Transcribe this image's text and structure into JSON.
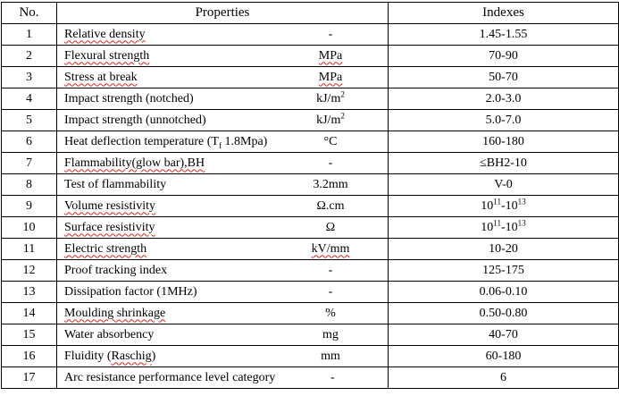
{
  "document": {
    "table": {
      "headers": {
        "no": "No.",
        "properties": "Properties",
        "indexes": "Indexes"
      },
      "rows": [
        {
          "no": "1",
          "name": [
            {
              "t": "Relative density",
              "wavy": true
            }
          ],
          "unit": "-",
          "index": "1.45-1.55"
        },
        {
          "no": "2",
          "name": [
            {
              "t": "Flexural strength",
              "wavy": true
            }
          ],
          "unit": [
            {
              "t": "MPa",
              "wavy": true
            }
          ],
          "index": "70-90"
        },
        {
          "no": "3",
          "name": [
            {
              "t": "Stress at break",
              "wavy": true
            }
          ],
          "unit": [
            {
              "t": "MPa",
              "wavy": true
            }
          ],
          "index": "50-70"
        },
        {
          "no": "4",
          "name": "Impact strength (notched)",
          "unit": [
            {
              "t": "kJ/m"
            },
            {
              "t": "2",
              "sup": true
            }
          ],
          "index": "2.0-3.0"
        },
        {
          "no": "5",
          "name": "Impact strength (unnotched)",
          "unit": [
            {
              "t": "kJ/m"
            },
            {
              "t": "2",
              "sup": true
            }
          ],
          "index": "5.0-7.0"
        },
        {
          "no": "6",
          "name": [
            {
              "t": "Heat deflection temperature (T"
            },
            {
              "t": "f",
              "sub": true
            },
            {
              "t": " 1.8Mpa)"
            }
          ],
          "unit": "°C",
          "index": "160-180"
        },
        {
          "no": "7",
          "name": [
            {
              "t": "Flammability(glow bar),BH",
              "wavy": true
            }
          ],
          "unit": "-",
          "index": "≤BH2-10"
        },
        {
          "no": "8",
          "name": "Test of flammability",
          "unit": "3.2mm",
          "index": "V-0"
        },
        {
          "no": "9",
          "name": [
            {
              "t": "Volume resistivity",
              "wavy": true
            }
          ],
          "unit": "Ω.cm",
          "index": [
            {
              "t": "10"
            },
            {
              "t": "11",
              "sup": true
            },
            {
              "t": "-10"
            },
            {
              "t": "13",
              "sup": true
            }
          ]
        },
        {
          "no": "10",
          "name": [
            {
              "t": "Surface resistivity",
              "wavy": true
            }
          ],
          "unit": "Ω",
          "index": [
            {
              "t": "10"
            },
            {
              "t": "11",
              "sup": true
            },
            {
              "t": "-10"
            },
            {
              "t": "13",
              "sup": true
            }
          ]
        },
        {
          "no": "11",
          "name": [
            {
              "t": "Electric strength",
              "wavy": true
            }
          ],
          "unit": [
            {
              "t": "kV/mm",
              "wavy": true
            }
          ],
          "index": "10-20"
        },
        {
          "no": "12",
          "name": "Proof tracking index",
          "unit": "-",
          "index": "125-175"
        },
        {
          "no": "13",
          "name": "Dissipation factor (1MHz)",
          "unit": "-",
          "index": "0.06-0.10"
        },
        {
          "no": "14",
          "name": [
            {
              "t": "Moulding shrinkage",
              "wavy": true
            }
          ],
          "unit": "%",
          "index": "0.50-0.80"
        },
        {
          "no": "15",
          "name": "Water absorbency",
          "unit": "mg",
          "index": "40-70"
        },
        {
          "no": "16",
          "name": [
            {
              "t": "Fluidity ("
            },
            {
              "t": "Raschig",
              "wavy": true
            },
            {
              "t": ")"
            }
          ],
          "unit": "mm",
          "index": "60-180"
        },
        {
          "no": "17",
          "name": "Arc resistance performance level category",
          "unit": "-",
          "index": "6"
        }
      ]
    }
  }
}
